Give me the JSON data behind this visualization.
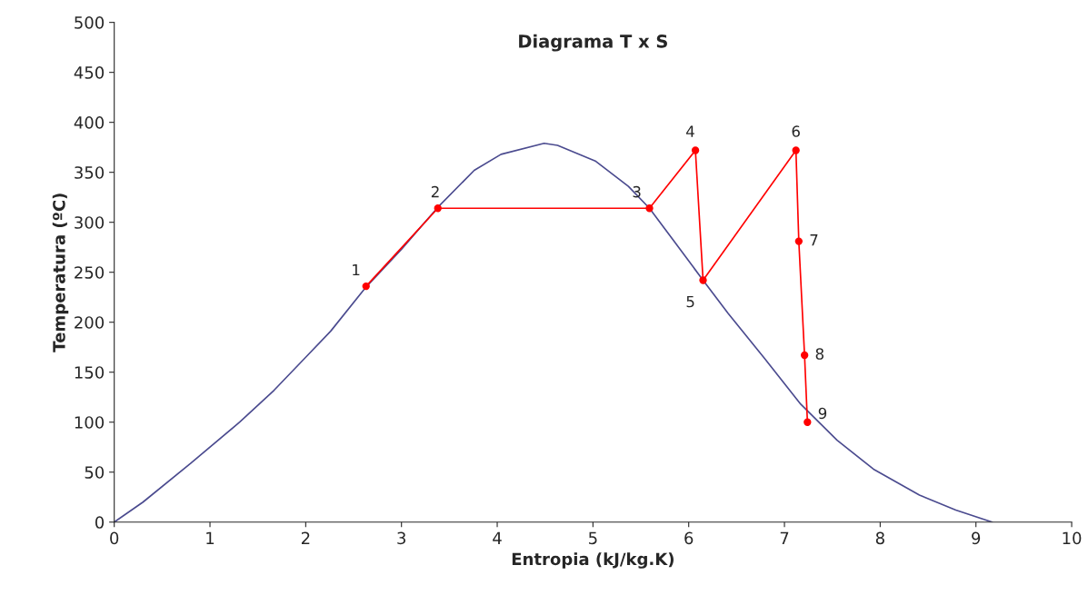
{
  "chart_data": {
    "type": "line",
    "title": "Diagrama T x S",
    "xlabel": "Entropia (kJ/kg.K)",
    "ylabel": "Temperatura (ºC)",
    "xlim": [
      0,
      10
    ],
    "xticks": [
      0,
      1,
      2,
      3,
      4,
      5,
      6,
      7,
      8,
      9,
      10
    ],
    "ylim": [
      0,
      500
    ],
    "yticks": [
      0,
      50,
      100,
      150,
      200,
      250,
      300,
      350,
      400,
      450,
      500
    ],
    "grid": false,
    "legend": false,
    "series": [
      {
        "color": "#4b4b8f",
        "marker": "none",
        "x": [
          0,
          0.3,
          0.8,
          1.31,
          1.67,
          2.0,
          2.26,
          2.62,
          3.0,
          3.38,
          3.76,
          4.04,
          4.49,
          4.63,
          5.03,
          5.37,
          5.59,
          5.84,
          6.15,
          6.41,
          6.79,
          7.17,
          7.55,
          7.93,
          8.41,
          8.79,
          9.17
        ],
        "values": [
          0,
          20,
          59,
          100,
          132,
          165,
          191,
          234,
          273,
          315,
          352,
          368,
          379,
          377,
          361,
          336,
          314,
          282,
          242,
          209,
          164,
          118,
          82,
          53,
          27,
          12,
          0
        ]
      },
      {
        "color": "#ff0000",
        "marker": "circle",
        "x": [
          2.63,
          3.38,
          5.59,
          6.07,
          6.15,
          7.12,
          7.15,
          7.21,
          7.24
        ],
        "values": [
          236,
          314,
          314,
          372,
          242,
          372,
          281,
          167,
          100
        ]
      }
    ],
    "annotations": [
      {
        "text": "1",
        "x": 2.63,
        "y": 236
      },
      {
        "text": "2",
        "x": 3.38,
        "y": 314
      },
      {
        "text": "3",
        "x": 5.59,
        "y": 314
      },
      {
        "text": "4",
        "x": 6.07,
        "y": 372
      },
      {
        "text": "5",
        "x": 6.15,
        "y": 242
      },
      {
        "text": "6",
        "x": 7.12,
        "y": 372
      },
      {
        "text": "7",
        "x": 7.15,
        "y": 281
      },
      {
        "text": "8",
        "x": 7.21,
        "y": 167
      },
      {
        "text": "9",
        "x": 7.24,
        "y": 100
      }
    ]
  }
}
